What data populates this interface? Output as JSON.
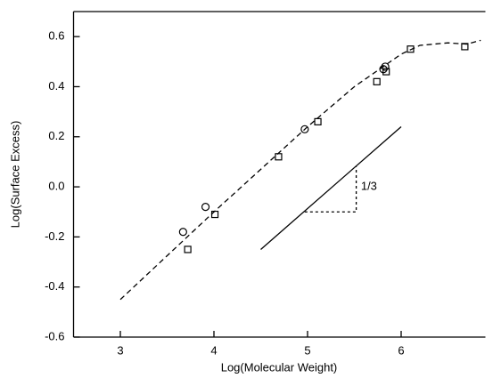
{
  "chart_data": {
    "type": "scatter",
    "x_label": "Log(Molecular Weight)",
    "y_label": "Log(Surface Excess)",
    "xlim": [
      2.5,
      6.9
    ],
    "xticks": [
      3,
      4,
      5,
      6
    ],
    "ylim": [
      -0.6,
      0.7
    ],
    "yticks": [
      0.6,
      0.4,
      0.2,
      {
        "value": 0,
        "label": "0.0"
      },
      -0.2,
      -0.4,
      -0.6
    ],
    "series": [
      {
        "marker": "circle",
        "color": "#000000",
        "x": [
          3.67,
          3.91,
          4.97,
          5.81,
          5.83
        ],
        "values": [
          -0.18,
          -0.08,
          0.23,
          0.47,
          0.48
        ]
      },
      {
        "marker": "square",
        "color": "#000000",
        "x": [
          3.72,
          4.01,
          4.69,
          5.11,
          5.74,
          5.84,
          6.1,
          6.68
        ],
        "values": [
          -0.25,
          -0.11,
          0.12,
          0.26,
          0.42,
          0.46,
          0.55,
          0.56
        ]
      },
      {
        "marker": "line",
        "dash": "dashed",
        "color": "#000000",
        "x": [
          3,
          4,
          5,
          5.5,
          6,
          6.2,
          6.5,
          6.7,
          6.85
        ],
        "values": [
          -0.45,
          -0.1,
          0.24,
          0.4,
          0.53,
          0.565,
          0.575,
          0.57,
          0.585
        ]
      },
      {
        "marker": "line",
        "dash": "solid",
        "color": "#000000",
        "x": [
          4.5,
          6
        ],
        "values": [
          -0.25,
          0.24
        ]
      },
      {
        "marker": "line",
        "dash": "dotted",
        "color": "#000000",
        "x": [
          4.97,
          5.52,
          5.52
        ],
        "values": [
          -0.1,
          -0.1,
          0.08
        ]
      }
    ],
    "annotations": [
      {
        "text": "1/3",
        "x": 5.57,
        "y": 0
      }
    ]
  }
}
